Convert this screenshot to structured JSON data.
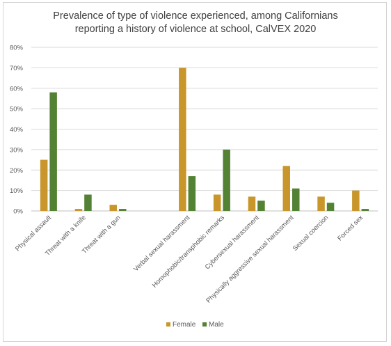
{
  "chart_data": {
    "type": "bar",
    "title_line1": "Prevalence of type of violence experienced, among Californians",
    "title_line2": "reporting a history of violence at school, CalVEX 2020",
    "categories": [
      "Physical assault",
      "Threat with a knife",
      "Threat with a gun",
      "",
      "Verbal sexual harassment",
      "Homophobic/transphobic remarks",
      "Cybersexual harassment",
      "Physically aggressive sexual harassment",
      "Sexual coercion",
      "Forced sex"
    ],
    "series": [
      {
        "name": "Female",
        "color": "#C8962A",
        "values": [
          25,
          1,
          3,
          null,
          70,
          8,
          7,
          22,
          7,
          10
        ]
      },
      {
        "name": "Male",
        "color": "#548235",
        "values": [
          58,
          8,
          1,
          null,
          17,
          30,
          5,
          11,
          4,
          1
        ]
      }
    ],
    "yticks": [
      "0%",
      "10%",
      "20%",
      "30%",
      "40%",
      "50%",
      "60%",
      "70%",
      "80%"
    ],
    "ylim": [
      0,
      80
    ],
    "grid": true,
    "legend_position": "bottom"
  }
}
